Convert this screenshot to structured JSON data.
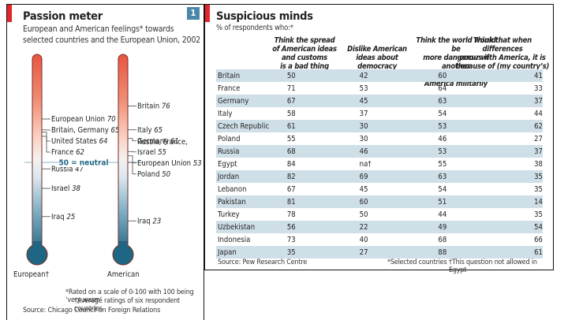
{
  "left_panel": {
    "title": "Passion meter",
    "subtitle_line1": "European and American feelings* towards",
    "subtitle_line2": "selected countries and the European Union, 2002",
    "badge": "1",
    "neutral_label": "50 = neutral",
    "footnote1": "*Rated on a scale of 0-100 with 100 being ‘very warm’",
    "footnote2": "†Average ratings of six respondent countries",
    "source": "Source: Chicago Council on Foreign Relations"
  },
  "chart_data": [
    {
      "type": "thermometer",
      "title": "Passion meter",
      "subtitle": "European and American feelings* towards selected countries and the European Union, 2002",
      "scale": [
        0,
        100
      ],
      "neutral": 50,
      "series": [
        {
          "name": "European†",
          "labels": [
            {
              "text": "European Union",
              "value": 70
            },
            {
              "text": "Britain, Germany",
              "value": 65
            },
            {
              "text": "United States",
              "value": 64
            },
            {
              "text": "France",
              "value": 62
            },
            {
              "text": "Russia",
              "value": 47
            },
            {
              "text": "Israel",
              "value": 38
            },
            {
              "text": "Iraq",
              "value": 25
            }
          ]
        },
        {
          "name": "American",
          "labels": [
            {
              "text": "Britain",
              "value": 76
            },
            {
              "text": "Italy",
              "value": 65
            },
            {
              "text": "Germany",
              "value": 61
            },
            {
              "text": "Russia, France, Israel",
              "value": 55
            },
            {
              "text": "European Union",
              "value": 53
            },
            {
              "text": "Poland",
              "value": 50
            },
            {
              "text": "Iraq",
              "value": 23
            }
          ]
        }
      ]
    },
    {
      "type": "table",
      "title": "Suspicious minds",
      "subtitle": "% of respondents who:*",
      "columns": [
        "Think the spread of American ideas and customs is a bad thing",
        "Dislike American ideas about democracy",
        "Think the world would be more dangerous if another country matched America militarily",
        "Think that when differences occur with America, it is because of (my country's) different values"
      ],
      "rows": [
        {
          "country": "Britain",
          "values": [
            "50",
            "42",
            "60",
            "41"
          ]
        },
        {
          "country": "France",
          "values": [
            "71",
            "53",
            "64",
            "33"
          ]
        },
        {
          "country": "Germany",
          "values": [
            "67",
            "45",
            "63",
            "37"
          ]
        },
        {
          "country": "Italy",
          "values": [
            "58",
            "37",
            "54",
            "44"
          ]
        },
        {
          "country": "Czech Republic",
          "values": [
            "61",
            "30",
            "53",
            "62"
          ]
        },
        {
          "country": "Poland",
          "values": [
            "55",
            "30",
            "46",
            "27"
          ]
        },
        {
          "country": "Russia",
          "values": [
            "68",
            "46",
            "53",
            "37"
          ]
        },
        {
          "country": "Egypt",
          "values": [
            "84",
            "na†",
            "55",
            "38"
          ]
        },
        {
          "country": "Jordan",
          "values": [
            "82",
            "69",
            "63",
            "35"
          ]
        },
        {
          "country": "Lebanon",
          "values": [
            "67",
            "45",
            "54",
            "35"
          ]
        },
        {
          "country": "Pakistan",
          "values": [
            "81",
            "60",
            "51",
            "14"
          ]
        },
        {
          "country": "Turkey",
          "values": [
            "78",
            "50",
            "44",
            "35"
          ]
        },
        {
          "country": "Uzbekistan",
          "values": [
            "56",
            "22",
            "49",
            "54"
          ]
        },
        {
          "country": "Indonesia",
          "values": [
            "73",
            "40",
            "68",
            "66"
          ]
        },
        {
          "country": "Japan",
          "values": [
            "35",
            "27",
            "88",
            "61"
          ]
        }
      ]
    }
  ],
  "right_panel": {
    "title": "Suspicious minds",
    "subtitle": "% of respondents who:*",
    "col_heads": [
      [
        "Think the spread",
        "of American ideas",
        "and customs",
        "is a bad thing"
      ],
      [
        "Dislike American",
        "ideas about",
        "democracy"
      ],
      [
        "Think the world would be",
        "more dangerous if another",
        "country matched",
        "America militarily"
      ],
      [
        "Think that when differences",
        "occur with America, it is",
        "because of (my country’s)",
        "different values"
      ]
    ],
    "source": "Source: Pew Research Centre",
    "footnote1": "*Selected countries",
    "footnote2": "†This question not allowed in Egypt"
  },
  "colors": {
    "accent": "#e3262b",
    "badge": "#4a86a8",
    "warm": "#e85b45",
    "cool": "#1e6683",
    "row_shade": "#cfdfe8",
    "neutral_line": "#8fb6c9"
  }
}
